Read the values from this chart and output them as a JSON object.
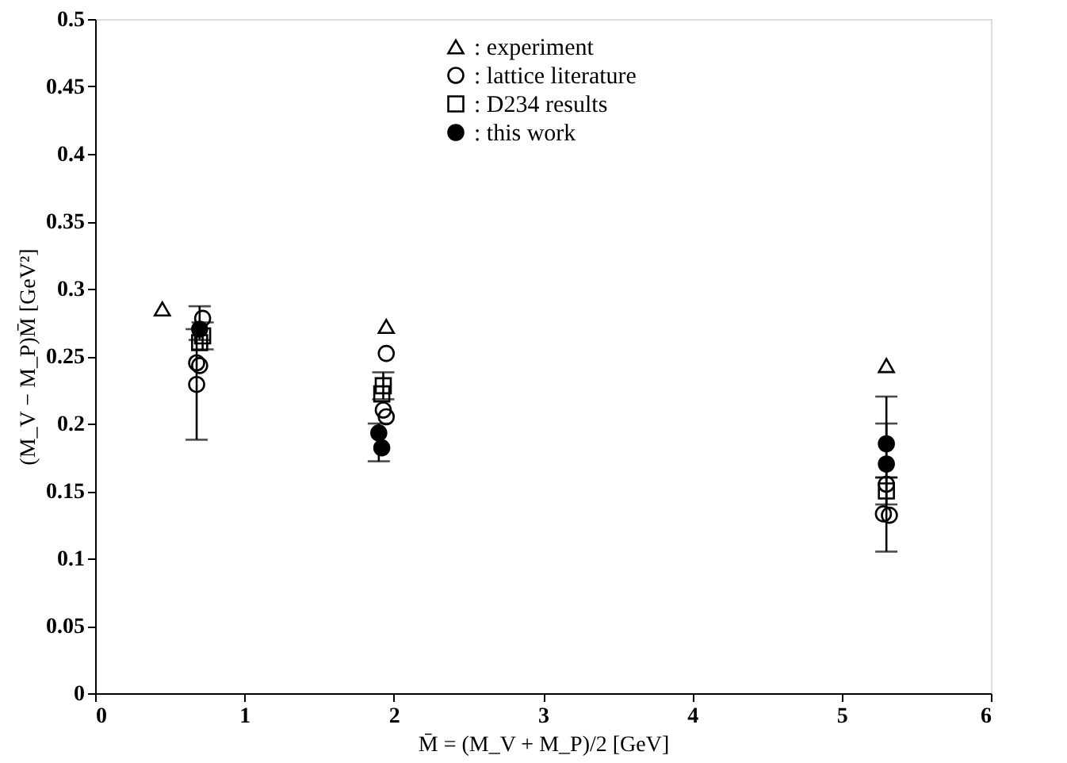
{
  "chart_data": {
    "type": "scatter",
    "xlabel": "M̄ = (M_V + M_P)/2 [GeV]",
    "ylabel": "(M_V − M_P)M̄ [GeV²]",
    "xlim": [
      0,
      6
    ],
    "xticks": [
      0,
      1,
      2,
      3,
      4,
      5,
      6
    ],
    "ylim": [
      0,
      0.5
    ],
    "yticks": [
      0,
      0.05,
      0.1,
      0.15,
      0.2,
      0.25,
      0.3,
      0.35,
      0.4,
      0.45,
      0.5
    ],
    "grid": false,
    "legend": "top",
    "series": [
      {
        "name": ": experiment",
        "color": "#000000",
        "marker": "triangle",
        "x": [
          0.45,
          1.95,
          5.3
        ],
        "values": [
          0.285,
          0.272,
          0.243
        ]
      },
      {
        "name": ": lattice literature",
        "color": "#000000",
        "marker": "circle",
        "x": [
          0.68,
          0.72,
          0.7,
          0.68,
          1.95,
          1.93,
          1.95,
          5.3,
          5.28,
          5.32
        ],
        "values": [
          0.229,
          0.278,
          0.243,
          0.245,
          0.252,
          0.21,
          0.205,
          0.155,
          0.133,
          0.132
        ],
        "errors": [
          [
            0.188,
            0.27
          ],
          null,
          null,
          null,
          null,
          null,
          null,
          [
            0.105,
            0.22
          ],
          null,
          null
        ]
      },
      {
        "name": ": D234 results",
        "color": "#000000",
        "marker": "square",
        "x": [
          0.72,
          0.7,
          1.93,
          1.92,
          5.3
        ],
        "values": [
          0.265,
          0.26,
          0.228,
          0.222,
          0.15
        ],
        "errors": [
          [
            0.255,
            0.275
          ],
          null,
          [
            0.218,
            0.238
          ],
          null,
          [
            0.14,
            0.16
          ]
        ]
      },
      {
        "name": ": this work",
        "color": "#000000",
        "marker": "circle",
        "x": [
          0.7,
          1.9,
          1.92,
          5.3,
          5.3
        ],
        "values": [
          0.27,
          0.193,
          0.182,
          0.185,
          0.17
        ],
        "errors": [
          [
            0.262,
            0.287
          ],
          [
            0.172,
            0.2
          ],
          null,
          [
            0.16,
            0.2
          ],
          null
        ]
      }
    ]
  }
}
